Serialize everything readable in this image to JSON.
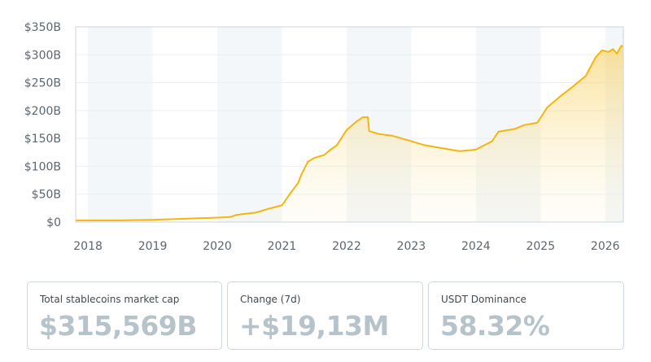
{
  "chart_data": {
    "type": "area",
    "title": "",
    "xlabel": "",
    "ylabel": "",
    "xlim": [
      2017.81,
      2026.28
    ],
    "ylim": [
      0,
      350
    ],
    "y_ticks": [
      0,
      50,
      100,
      150,
      200,
      250,
      300,
      350
    ],
    "y_tick_labels": [
      "$0",
      "$50B",
      "$100B",
      "$150B",
      "$200B",
      "$250B",
      "$300B",
      "$350B"
    ],
    "x_ticks": [
      2018,
      2019,
      2020,
      2021,
      2022,
      2023,
      2024,
      2025,
      2026
    ],
    "x_tick_labels": [
      "2018",
      "2019",
      "2020",
      "2021",
      "2022",
      "2023",
      "2024",
      "2025",
      "2026"
    ],
    "grid": true,
    "shaded_year_bands": [
      [
        2018,
        2019
      ],
      [
        2020,
        2021
      ],
      [
        2022,
        2023
      ],
      [
        2024,
        2025
      ],
      [
        2026,
        2026.28
      ]
    ],
    "series": [
      {
        "name": "Total stablecoins market cap ($B)",
        "color": "#f5b50e",
        "x": [
          2017.81,
          2018.5,
          2019.0,
          2019.5,
          2020.0,
          2020.2,
          2020.3,
          2020.6,
          2020.8,
          2021.0,
          2021.05,
          2021.15,
          2021.25,
          2021.3,
          2021.4,
          2021.5,
          2021.65,
          2021.75,
          2021.85,
          2022.0,
          2022.15,
          2022.25,
          2022.33,
          2022.35,
          2022.5,
          2022.7,
          2023.0,
          2023.2,
          2023.5,
          2023.75,
          2024.0,
          2024.25,
          2024.35,
          2024.6,
          2024.75,
          2024.95,
          2025.1,
          2025.3,
          2025.5,
          2025.7,
          2025.85,
          2025.95,
          2026.05,
          2026.12,
          2026.18,
          2026.25,
          2026.28
        ],
        "values": [
          3,
          3,
          4,
          6,
          8,
          9,
          13,
          17,
          24,
          30,
          38,
          55,
          70,
          85,
          108,
          115,
          120,
          130,
          138,
          165,
          180,
          188,
          188,
          163,
          158,
          155,
          145,
          138,
          132,
          127,
          130,
          145,
          162,
          167,
          174,
          178,
          205,
          225,
          243,
          262,
          295,
          308,
          305,
          310,
          302,
          316,
          315
        ]
      }
    ]
  },
  "stats": [
    {
      "label": "Total stablecoins market cap",
      "value": "$315,569B"
    },
    {
      "label": "Change (7d)",
      "value": "+$19,13M"
    },
    {
      "label": "USDT Dominance",
      "value": "58.32%"
    }
  ]
}
